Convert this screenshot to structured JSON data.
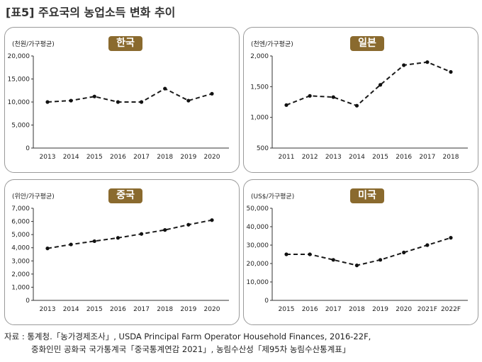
{
  "title": "[표5] 주요국의 농업소득 변화 추이",
  "source": {
    "line1": "자료 : 통계청.「농가경제조사」, USDA Principal Farm Operator Household Finances, 2016-22F,",
    "line2": "중화인민 공화국 국가통계국「중국통계연감 2021」, 농림수산성「제95차 농림수산통계표」"
  },
  "chart_data": [
    {
      "type": "line",
      "title": "한국",
      "ylabel": "(천원/가구평균)",
      "categories": [
        "2013",
        "2014",
        "2015",
        "2016",
        "2017",
        "2018",
        "2019",
        "2020"
      ],
      "values": [
        10000,
        10300,
        11200,
        10000,
        10000,
        12900,
        10300,
        11800
      ],
      "yticks": [
        "0",
        "5,000",
        "10,000",
        "15,000",
        "20,000"
      ],
      "ylim": [
        0,
        20000
      ],
      "line_style": "dashed",
      "grid": false
    },
    {
      "type": "line",
      "title": "일본",
      "ylabel": "(천엔/가구평균)",
      "categories": [
        "2011",
        "2012",
        "2013",
        "2014",
        "2015",
        "2016",
        "2017",
        "2018"
      ],
      "values": [
        1200,
        1350,
        1330,
        1190,
        1530,
        1850,
        1900,
        1740
      ],
      "yticks": [
        "500",
        "1,000",
        "1,500",
        "2,000"
      ],
      "ylim": [
        500,
        2000
      ],
      "line_style": "dashed",
      "grid": false
    },
    {
      "type": "line",
      "title": "중국",
      "ylabel": "(위안/가구평균)",
      "categories": [
        "2013",
        "2014",
        "2015",
        "2016",
        "2017",
        "2018",
        "2019",
        "2020"
      ],
      "values": [
        3950,
        4250,
        4500,
        4750,
        5050,
        5350,
        5750,
        6100
      ],
      "yticks": [
        "0",
        "1,000",
        "2,000",
        "3,000",
        "4,000",
        "5,000",
        "6,000",
        "7,000"
      ],
      "ylim": [
        0,
        7000
      ],
      "line_style": "dashed",
      "grid": false
    },
    {
      "type": "line",
      "title": "미국",
      "ylabel": "(US$/가구평균)",
      "categories": [
        "2015",
        "2016",
        "2017",
        "2018",
        "2019",
        "2020",
        "2021F",
        "2022F"
      ],
      "values": [
        25000,
        25000,
        22000,
        19000,
        22000,
        26000,
        30000,
        34000
      ],
      "yticks": [
        "0",
        "10,000",
        "20,000",
        "30,000",
        "40,000",
        "50,000"
      ],
      "ylim": [
        0,
        50000
      ],
      "line_style": "dashed",
      "grid": false
    }
  ]
}
